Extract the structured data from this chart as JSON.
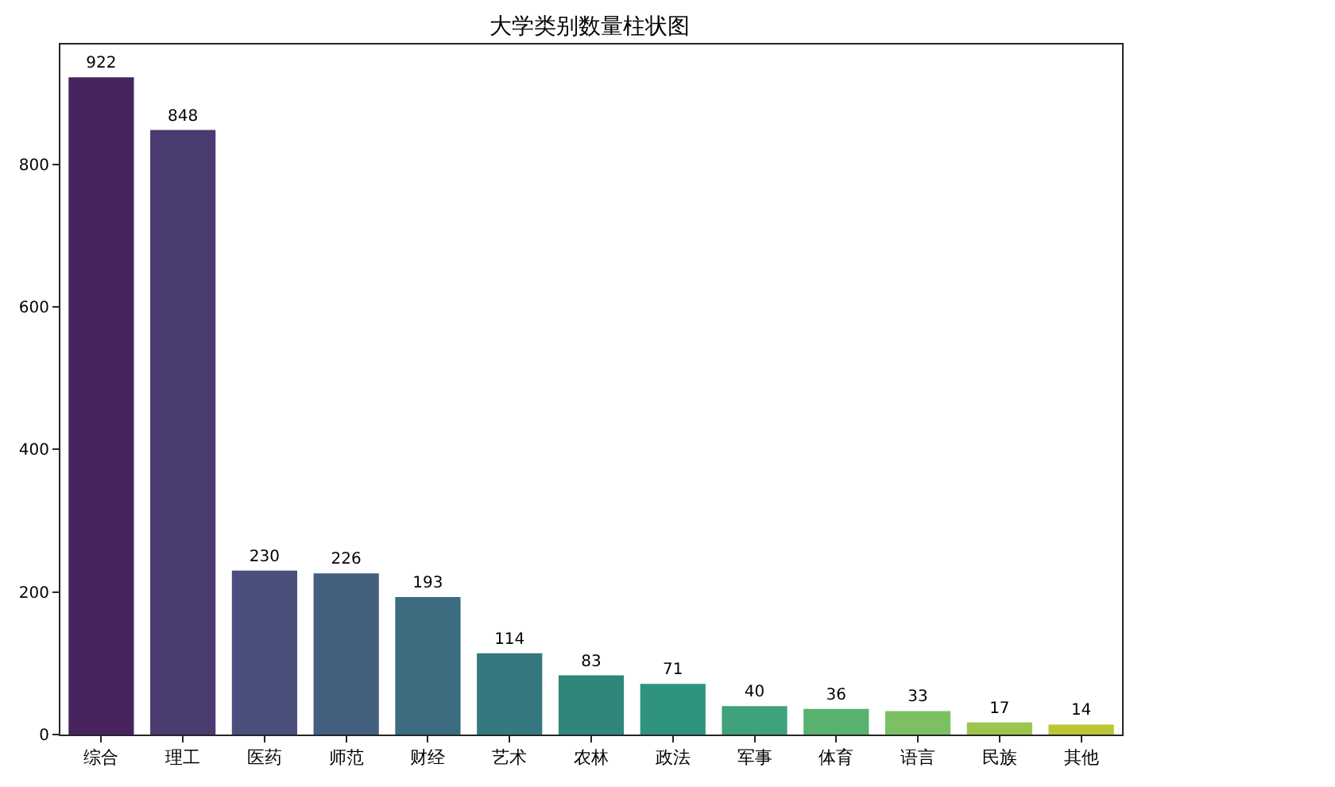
{
  "chart_data": {
    "type": "bar",
    "title": "大学类别数量柱状图",
    "categories": [
      "综合",
      "理工",
      "医药",
      "师范",
      "财经",
      "艺术",
      "农林",
      "政法",
      "军事",
      "体育",
      "语言",
      "民族",
      "其他"
    ],
    "values": [
      922,
      848,
      230,
      226,
      193,
      114,
      83,
      71,
      40,
      36,
      33,
      17,
      14
    ],
    "colors": [
      "#48245f",
      "#4a3b70",
      "#4a4f7c",
      "#43607f",
      "#3b6c80",
      "#357880",
      "#2f867b",
      "#309380",
      "#3fa27a",
      "#58b16f",
      "#7dc064",
      "#9ec54e",
      "#bbc536"
    ],
    "ylim": [
      0,
      968
    ],
    "yticks": [
      0,
      200,
      400,
      600,
      800
    ],
    "data_labels": true,
    "grid": false
  }
}
